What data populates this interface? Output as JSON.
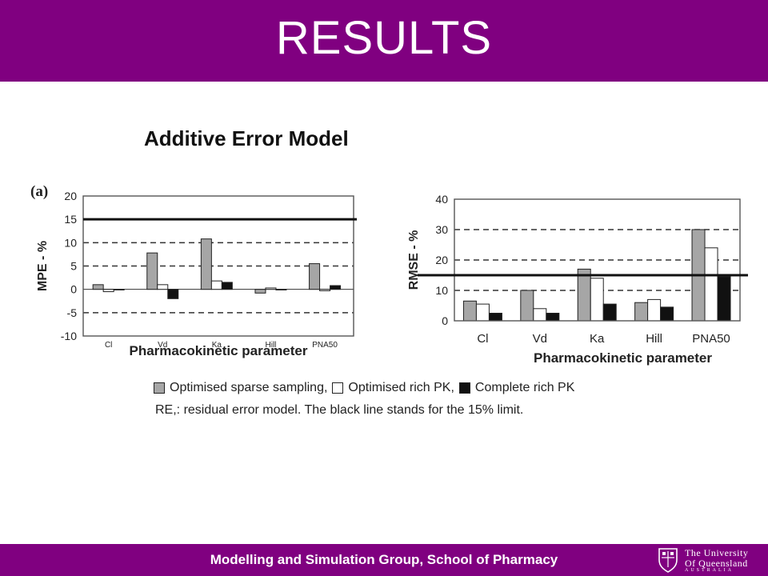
{
  "header": {
    "title": "RESULTS"
  },
  "subtitle": "Additive Error Model",
  "legend": {
    "items": [
      {
        "label": "Optimised sparse sampling,",
        "color": "#a6a6a6"
      },
      {
        "label": "Optimised rich PK,",
        "color": "#ffffff"
      },
      {
        "label": "Complete rich PK",
        "color": "#111111"
      }
    ],
    "note": "RE,: residual error model. The black line stands for the 15% limit."
  },
  "footer": {
    "text": "Modelling and Simulation Group, School of Pharmacy",
    "logo": {
      "line1": "The University",
      "line2": "Of Queensland",
      "line3": "AUSTRALIA",
      "icon": "crest-icon"
    }
  },
  "colors": {
    "brand": "#800080"
  },
  "chart_data": [
    {
      "type": "bar",
      "panel_label": "(a)",
      "categories": [
        "Cl",
        "Vd",
        "Ka",
        "Hill",
        "PNA50"
      ],
      "series": [
        {
          "name": "Optimised sparse sampling",
          "values": [
            1,
            7.8,
            10.8,
            -0.8,
            5.5
          ]
        },
        {
          "name": "Optimised rich PK",
          "values": [
            -0.5,
            1,
            1.8,
            0.3,
            -0.3
          ]
        },
        {
          "name": "Complete rich PK",
          "values": [
            0,
            -2,
            1.5,
            0,
            0.8
          ]
        }
      ],
      "ylabel": "MPE - %",
      "xlabel": "Pharmacokinetic parameter",
      "ylim": [
        -10,
        20
      ],
      "yticks": [
        20,
        15,
        10,
        5,
        0,
        -5,
        -10
      ],
      "reference_line": 15,
      "dashed_grid": [
        10,
        5,
        -5
      ]
    },
    {
      "type": "bar",
      "categories": [
        "Cl",
        "Vd",
        "Ka",
        "Hill",
        "PNA50"
      ],
      "series": [
        {
          "name": "Optimised sparse sampling",
          "values": [
            6.5,
            10,
            17,
            6,
            30
          ]
        },
        {
          "name": "Optimised rich PK",
          "values": [
            5.5,
            4,
            14,
            7,
            24
          ]
        },
        {
          "name": "Complete rich PK",
          "values": [
            2.5,
            2.5,
            5.5,
            4.5,
            14.5
          ]
        }
      ],
      "ylabel": "RMSE - %",
      "xlabel": "Pharmacokinetic parameter",
      "ylim": [
        0,
        40
      ],
      "yticks": [
        40,
        30,
        20,
        10,
        0
      ],
      "reference_line": 15,
      "dashed_grid": [
        30,
        20,
        10
      ]
    }
  ]
}
